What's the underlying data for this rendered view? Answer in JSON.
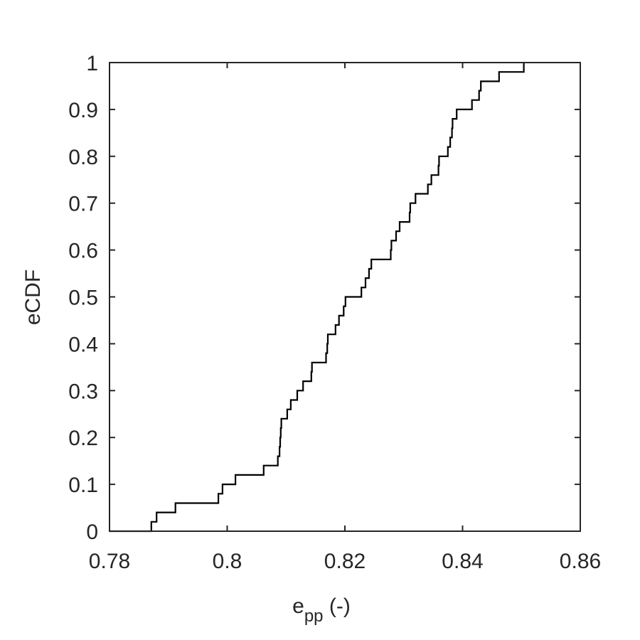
{
  "chart_data": {
    "type": "line",
    "style": "step",
    "title": "",
    "xlabel": "e",
    "xlabel_sub": "pp",
    "xlabel_suffix": " (-)",
    "ylabel": "eCDF",
    "xlim": [
      0.78,
      0.86
    ],
    "ylim": [
      0,
      1
    ],
    "xticks": [
      0.78,
      0.8,
      0.82,
      0.84,
      0.86
    ],
    "xtick_labels": [
      "0.78",
      "0.8",
      "0.82",
      "0.84",
      "0.86"
    ],
    "yticks": [
      0,
      0.1,
      0.2,
      0.3,
      0.4,
      0.5,
      0.6,
      0.7,
      0.8,
      0.9,
      1
    ],
    "ytick_labels": [
      "0",
      "0.1",
      "0.2",
      "0.3",
      "0.4",
      "0.5",
      "0.6",
      "0.7",
      "0.8",
      "0.9",
      "1"
    ],
    "grid": false,
    "line_color": "#000000",
    "axis_color": "#262626",
    "series": [
      {
        "x": [
          0.7871,
          0.788,
          0.7912,
          0.7985,
          0.7992,
          0.8014,
          0.8062,
          0.8086,
          0.8089,
          0.809,
          0.8091,
          0.8092,
          0.8102,
          0.8108,
          0.8119,
          0.8129,
          0.8143,
          0.8144,
          0.8168,
          0.817,
          0.8171,
          0.8184,
          0.819,
          0.8198,
          0.8201,
          0.8228,
          0.8235,
          0.8241,
          0.8245,
          0.8278,
          0.8279,
          0.8287,
          0.8293,
          0.831,
          0.8311,
          0.832,
          0.8341,
          0.8347,
          0.8359,
          0.836,
          0.8375,
          0.8379,
          0.8382,
          0.8383,
          0.839,
          0.8416,
          0.8428,
          0.8431,
          0.8462,
          0.8504
        ],
        "y": [
          0.02,
          0.04,
          0.06,
          0.08,
          0.1,
          0.12,
          0.14,
          0.16,
          0.18,
          0.2,
          0.22,
          0.24,
          0.26,
          0.28,
          0.3,
          0.32,
          0.34,
          0.36,
          0.38,
          0.4,
          0.42,
          0.44,
          0.46,
          0.48,
          0.5,
          0.52,
          0.54,
          0.56,
          0.58,
          0.6,
          0.62,
          0.64,
          0.66,
          0.68,
          0.7,
          0.72,
          0.74,
          0.76,
          0.78,
          0.8,
          0.82,
          0.84,
          0.86,
          0.88,
          0.9,
          0.92,
          0.94,
          0.96,
          0.98,
          1.0
        ]
      }
    ]
  }
}
